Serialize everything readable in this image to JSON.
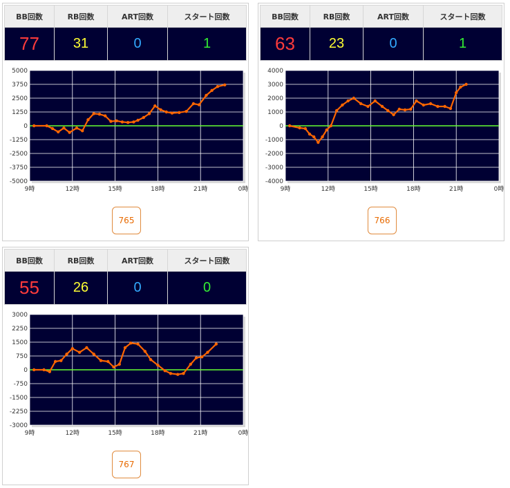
{
  "headers": {
    "bb": "BB回数",
    "rb": "RB回数",
    "art": "ART回数",
    "start": "スタート回数"
  },
  "colors": {
    "bb": "#ff3b3b",
    "rb": "#ffff33",
    "art": "#33aaff",
    "start": "#33ee33",
    "line": "#ff6600",
    "zero_line": "#66ff33",
    "plot_bg": "#000033"
  },
  "machines": [
    {
      "number": "765",
      "stats": {
        "bb": "77",
        "rb": "31",
        "art": "0",
        "start": "1"
      },
      "chart_data": {
        "type": "line",
        "x_ticks": [
          "9時",
          "12時",
          "15時",
          "18時",
          "21時",
          "0時"
        ],
        "xlim": [
          9,
          24
        ],
        "ylim": [
          -5000,
          5000
        ],
        "y_ticks": [
          "5000",
          "3750",
          "2500",
          "1250",
          "0",
          "-1250",
          "-2500",
          "-3750",
          "-5000"
        ],
        "grid": true,
        "x": [
          9.3,
          10.2,
          10.6,
          11.0,
          11.4,
          11.8,
          12.3,
          12.7,
          13.1,
          13.5,
          13.9,
          14.3,
          14.7,
          15.1,
          15.5,
          15.9,
          16.3,
          16.6,
          17.0,
          17.4,
          17.8,
          18.2,
          18.6,
          19.0,
          19.5,
          20.0,
          20.5,
          20.9,
          21.4,
          21.8,
          22.2,
          22.7
        ],
        "y": [
          0,
          0,
          -250,
          -550,
          -200,
          -600,
          -200,
          -450,
          550,
          1100,
          1050,
          900,
          400,
          450,
          350,
          300,
          350,
          500,
          750,
          1100,
          1800,
          1450,
          1250,
          1150,
          1200,
          1300,
          2000,
          1900,
          2750,
          3200,
          3550,
          3700
        ]
      }
    },
    {
      "number": "766",
      "stats": {
        "bb": "63",
        "rb": "23",
        "art": "0",
        "start": "1"
      },
      "chart_data": {
        "type": "line",
        "x_ticks": [
          "9時",
          "12時",
          "15時",
          "18時",
          "21時",
          "0時"
        ],
        "xlim": [
          9,
          24
        ],
        "ylim": [
          -4000,
          4000
        ],
        "y_ticks": [
          "4000",
          "3000",
          "2000",
          "1000",
          "0",
          "-1000",
          "-2000",
          "-3000",
          "-4000"
        ],
        "grid": true,
        "x": [
          9.3,
          10.0,
          10.4,
          10.7,
          11.0,
          11.3,
          11.6,
          11.9,
          12.2,
          12.6,
          13.0,
          13.4,
          13.8,
          14.3,
          14.8,
          15.3,
          15.8,
          16.2,
          16.6,
          17.0,
          17.4,
          17.8,
          18.2,
          18.7,
          19.2,
          19.7,
          20.2,
          20.6,
          21.0,
          21.3,
          21.7
        ],
        "y": [
          0,
          -150,
          -200,
          -600,
          -800,
          -1200,
          -800,
          -300,
          0,
          1100,
          1500,
          1800,
          2000,
          1600,
          1400,
          1800,
          1400,
          1100,
          800,
          1200,
          1150,
          1200,
          1800,
          1500,
          1600,
          1400,
          1400,
          1250,
          2400,
          2800,
          3000
        ]
      }
    },
    {
      "number": "767",
      "stats": {
        "bb": "55",
        "rb": "26",
        "art": "0",
        "start": "0"
      },
      "chart_data": {
        "type": "line",
        "x_ticks": [
          "9時",
          "12時",
          "15時",
          "18時",
          "21時",
          "0時"
        ],
        "xlim": [
          9,
          24
        ],
        "ylim": [
          -3000,
          3000
        ],
        "y_ticks": [
          "3000",
          "2250",
          "1500",
          "750",
          "0",
          "-750",
          "-1500",
          "-2250",
          "-3000"
        ],
        "grid": true,
        "x": [
          9.3,
          10.0,
          10.4,
          10.8,
          11.2,
          11.6,
          12.0,
          12.5,
          13.0,
          13.5,
          14.0,
          14.5,
          14.9,
          15.3,
          15.7,
          16.1,
          16.6,
          17.1,
          17.5,
          18.0,
          18.5,
          18.9,
          19.4,
          19.8,
          20.3,
          20.7,
          21.1,
          21.5,
          22.1
        ],
        "y": [
          0,
          0,
          -100,
          450,
          500,
          850,
          1150,
          950,
          1200,
          850,
          500,
          450,
          150,
          300,
          1200,
          1450,
          1400,
          1000,
          550,
          250,
          -50,
          -200,
          -250,
          -200,
          300,
          650,
          700,
          950,
          1400
        ]
      }
    }
  ]
}
